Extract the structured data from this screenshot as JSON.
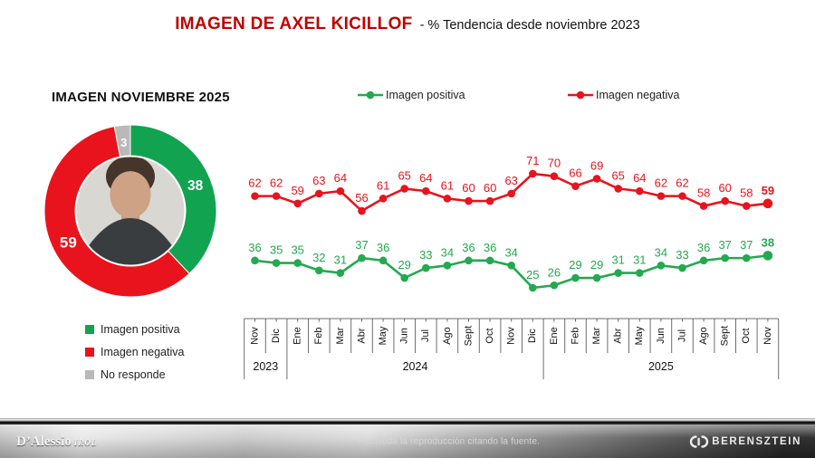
{
  "title": {
    "main": "IMAGEN DE AXEL KICILLOF",
    "subtitle": "- % Tendencia desde noviembre 2023",
    "color": "#C00000"
  },
  "donut": {
    "heading": "IMAGEN NOVIEMBRE 2025",
    "center_image": "photo-axel-kicillof",
    "slices": [
      {
        "label": "Imagen positiva",
        "value": 38,
        "color": "#12A350"
      },
      {
        "label": "Imagen negativa",
        "value": 59,
        "color": "#E8131C"
      },
      {
        "label": "No responde",
        "value": 3,
        "color": "#B9B9B9"
      }
    ]
  },
  "chart_data": {
    "type": "line",
    "x": [
      "Nov",
      "Dic",
      "Ene",
      "Feb",
      "Mar",
      "Abr",
      "May",
      "Jun",
      "Jul",
      "Ago",
      "Sept",
      "Oct",
      "Nov",
      "Dic",
      "Ene",
      "Feb",
      "Mar",
      "Abr",
      "May",
      "Jun",
      "Jul",
      "Ago",
      "Sept",
      "Oct",
      "Nov"
    ],
    "years": [
      {
        "label": "2023",
        "span": 2
      },
      {
        "label": "2024",
        "span": 12
      },
      {
        "label": "2025",
        "span": 11
      }
    ],
    "series": [
      {
        "name": "Imagen positiva",
        "color": "#23A94F",
        "values": [
          36,
          35,
          35,
          32,
          31,
          37,
          36,
          29,
          33,
          34,
          36,
          36,
          34,
          25,
          26,
          29,
          29,
          31,
          31,
          34,
          33,
          36,
          37,
          37,
          38
        ]
      },
      {
        "name": "Imagen negativa",
        "color": "#E8131C",
        "values": [
          62,
          62,
          59,
          63,
          64,
          56,
          61,
          65,
          64,
          61,
          60,
          60,
          63,
          71,
          70,
          66,
          69,
          65,
          64,
          62,
          62,
          58,
          60,
          58,
          59
        ]
      }
    ],
    "ylim": [
      20,
      80
    ],
    "grid": false,
    "y_axis_visible": false,
    "legend_position": "top",
    "data_labels": true
  },
  "footer": {
    "left_logo_main": "D’Alessio",
    "left_logo_sub": "IROL",
    "center_text": "Permitida la reproducción citando la fuente.",
    "right_logo": "BERENSZTEIN"
  }
}
